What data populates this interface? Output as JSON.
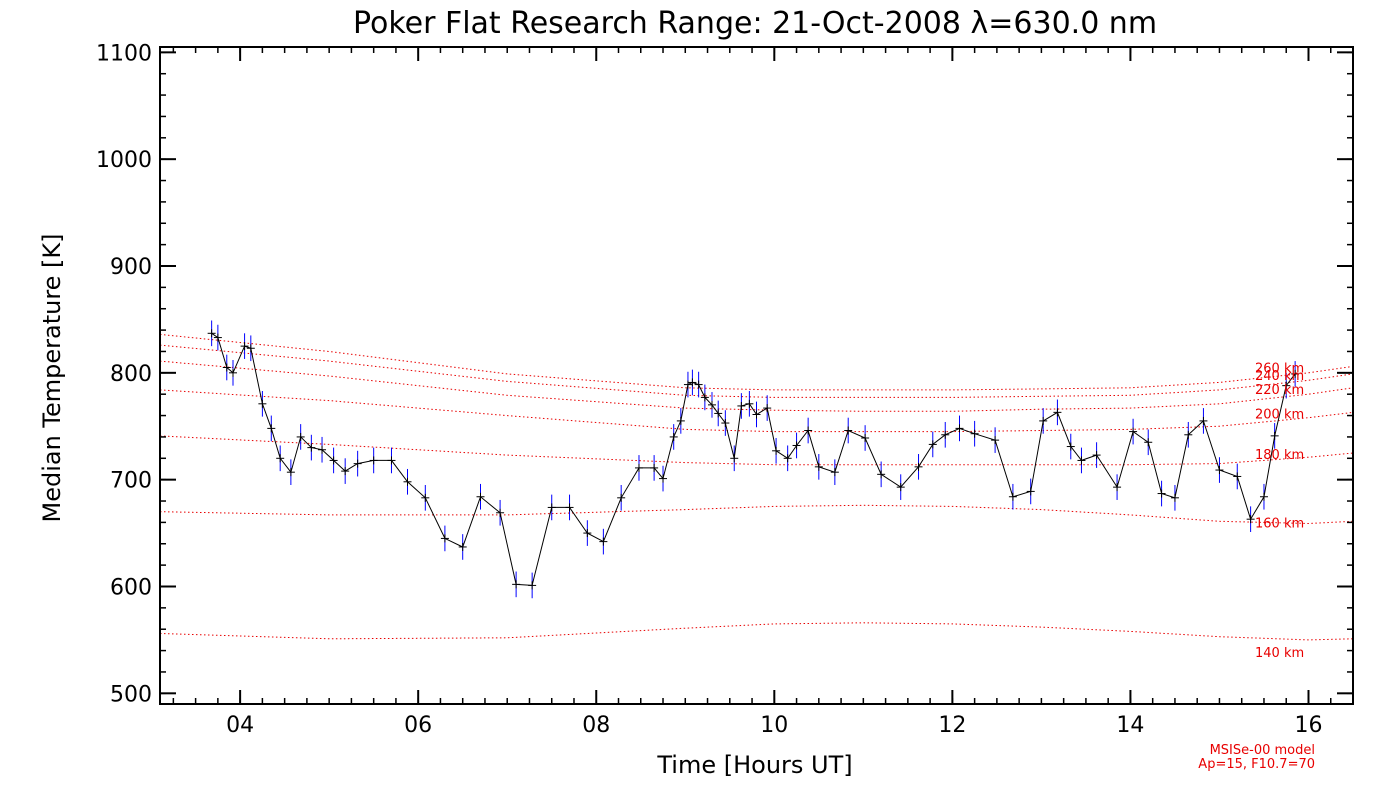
{
  "colors": {
    "background": "#ffffff",
    "axis": "#000000",
    "data_line": "#000000",
    "error_bars": "#0000ff",
    "model_lines": "#e80000",
    "model_text": "#e80000"
  },
  "chart_data": {
    "type": "line",
    "title": "Poker Flat Research Range: 21-Oct-2008 λ=630.0 nm",
    "xlabel": "Time [Hours UT]",
    "ylabel": "Median Temperature [K]",
    "xlim": [
      3.1,
      16.5
    ],
    "ylim": [
      490,
      1105
    ],
    "xticks": [
      4,
      6,
      8,
      10,
      12,
      14,
      16
    ],
    "xtick_labels": [
      "04",
      "06",
      "08",
      "10",
      "12",
      "14",
      "16"
    ],
    "yticks": [
      500,
      600,
      700,
      800,
      900,
      1000,
      1100
    ],
    "ytick_labels": [
      "500",
      "600",
      "700",
      "800",
      "900",
      "1000",
      "1100"
    ],
    "x_minor_step": 0.25,
    "y_minor_step": 20,
    "grid": false,
    "model_note_line1": "MSISe-00 model",
    "model_note_line2": "Ap=15, F10.7=70",
    "series": [
      {
        "x": [
          3.68,
          3.75,
          3.85,
          3.92,
          4.05,
          4.12,
          4.25,
          4.35,
          4.45,
          4.57,
          4.68,
          4.8,
          4.92,
          5.05,
          5.18,
          5.32,
          5.5,
          5.7,
          5.88,
          6.08,
          6.3,
          6.5,
          6.7,
          6.92,
          7.1,
          7.28,
          7.5,
          7.7,
          7.9,
          8.08,
          8.28,
          8.48,
          8.65,
          8.75,
          8.87,
          8.95,
          9.03,
          9.08,
          9.15,
          9.22,
          9.3,
          9.37,
          9.45,
          9.55,
          9.63,
          9.72,
          9.8,
          9.92,
          10.02,
          10.15,
          10.25,
          10.38,
          10.5,
          10.68,
          10.83,
          11.02,
          11.2,
          11.42,
          11.62,
          11.78,
          11.92,
          12.08,
          12.25,
          12.48,
          12.68,
          12.88,
          13.02,
          13.18,
          13.33,
          13.45,
          13.62,
          13.85,
          14.03,
          14.2,
          14.35,
          14.5,
          14.65,
          14.82,
          15.0,
          15.2,
          15.35,
          15.5,
          15.62,
          15.75,
          15.85
        ],
        "y": [
          837,
          833,
          805,
          800,
          825,
          823,
          771,
          748,
          720,
          707,
          740,
          730,
          728,
          718,
          708,
          715,
          718,
          718,
          698,
          683,
          645,
          637,
          684,
          669,
          602,
          601,
          674,
          674,
          650,
          642,
          683,
          711,
          711,
          701,
          740,
          755,
          789,
          791,
          789,
          777,
          770,
          762,
          753,
          720,
          769,
          771,
          761,
          767,
          727,
          720,
          732,
          746,
          712,
          707,
          746,
          739,
          705,
          693,
          712,
          733,
          742,
          748,
          743,
          737,
          684,
          689,
          755,
          763,
          731,
          718,
          723,
          693,
          745,
          735,
          687,
          683,
          742,
          755,
          709,
          703,
          663,
          684,
          741,
          788,
          799
        ],
        "yerr": 12
      }
    ],
    "model_curves": [
      {
        "label": "140 km",
        "x": [
          3.1,
          5.0,
          7.0,
          9.0,
          10.0,
          11.0,
          12.0,
          13.0,
          14.0,
          15.0,
          16.0,
          16.5
        ],
        "y": [
          556,
          551,
          552,
          561,
          565,
          566,
          565,
          562,
          558,
          553,
          550,
          551
        ]
      },
      {
        "label": "160 km",
        "x": [
          3.1,
          5.0,
          7.0,
          9.0,
          10.0,
          11.0,
          12.0,
          13.0,
          14.0,
          15.0,
          16.0,
          16.5
        ],
        "y": [
          670,
          667,
          667,
          672,
          675,
          676,
          675,
          672,
          667,
          661,
          659,
          661
        ]
      },
      {
        "label": "180 km",
        "x": [
          3.1,
          5.0,
          7.0,
          9.0,
          10.0,
          11.0,
          12.0,
          13.0,
          14.0,
          15.0,
          16.0,
          16.5
        ],
        "y": [
          741,
          733,
          723,
          716,
          714,
          714,
          714,
          714,
          714,
          715,
          721,
          725
        ]
      },
      {
        "label": "200 km",
        "x": [
          3.1,
          5.0,
          7.0,
          9.0,
          10.0,
          11.0,
          12.0,
          13.0,
          14.0,
          15.0,
          16.0,
          16.5
        ],
        "y": [
          784,
          774,
          760,
          747,
          745,
          745,
          745,
          746,
          747,
          750,
          758,
          763
        ]
      },
      {
        "label": "220 km",
        "x": [
          3.1,
          5.0,
          7.0,
          9.0,
          10.0,
          11.0,
          12.0,
          13.0,
          14.0,
          15.0,
          16.0,
          16.5
        ],
        "y": [
          811,
          797,
          779,
          767,
          765,
          764,
          764,
          766,
          767,
          771,
          780,
          786
        ]
      },
      {
        "label": "240 km",
        "x": [
          3.1,
          5.0,
          7.0,
          9.0,
          10.0,
          11.0,
          12.0,
          13.0,
          14.0,
          15.0,
          16.0,
          16.5
        ],
        "y": [
          826,
          811,
          792,
          779,
          777,
          777,
          777,
          778,
          779,
          784,
          793,
          799
        ]
      },
      {
        "label": "260 km",
        "x": [
          3.1,
          5.0,
          7.0,
          9.0,
          10.0,
          11.0,
          12.0,
          13.0,
          14.0,
          15.0,
          16.0,
          16.5
        ],
        "y": [
          836,
          820,
          799,
          786,
          784,
          784,
          784,
          785,
          786,
          791,
          800,
          806
        ]
      }
    ]
  }
}
